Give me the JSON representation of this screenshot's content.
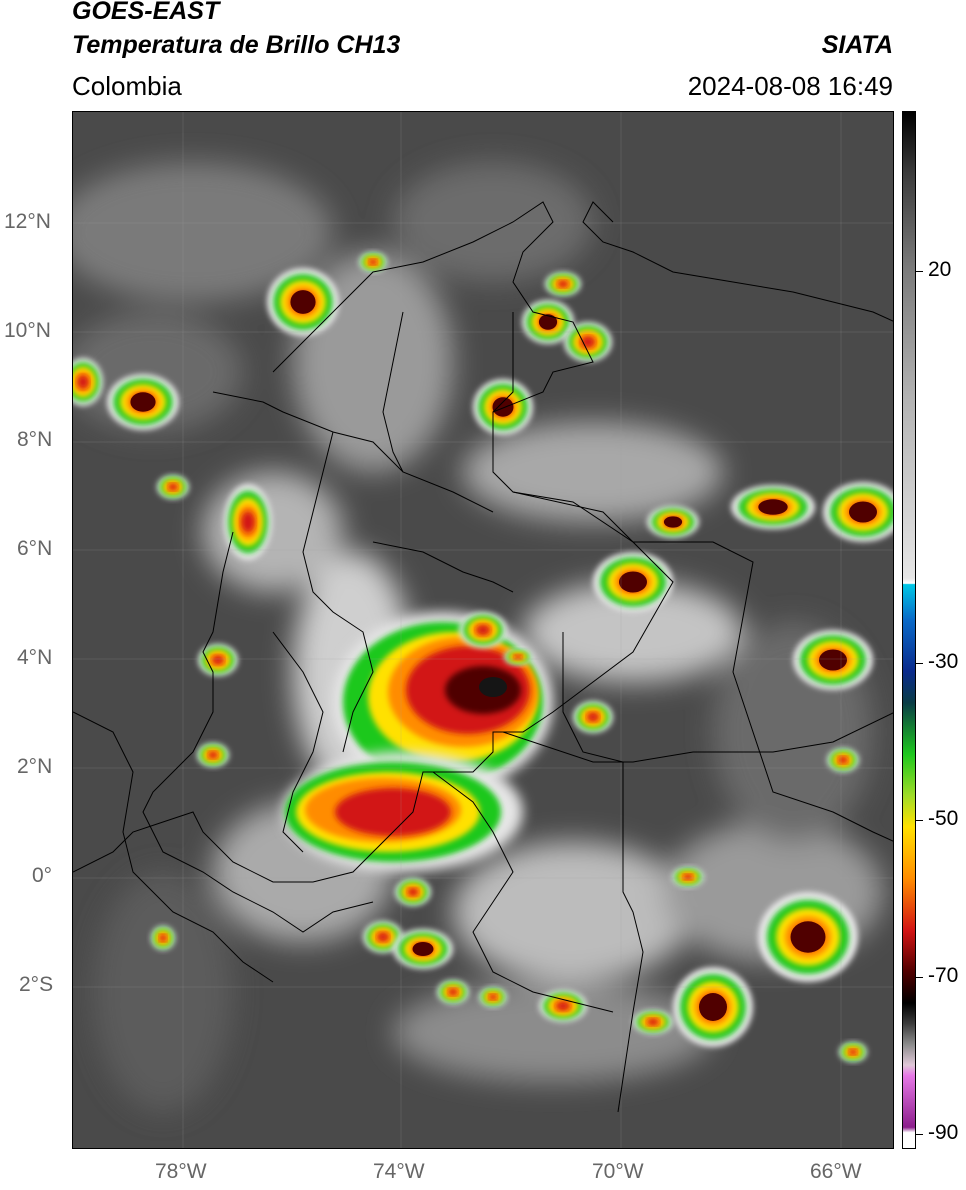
{
  "header": {
    "title_line1": "GOES-EAST",
    "title_line2": "Temperatura de Brillo CH13",
    "org": "SIATA",
    "region": "Colombia",
    "datetime": "2024-08-08 16:49"
  },
  "axes": {
    "lat_labels": [
      "12°N",
      "10°N",
      "8°N",
      "6°N",
      "4°N",
      "2°N",
      "0°",
      "2°S"
    ],
    "lon_labels": [
      "78°W",
      "74°W",
      "70°W",
      "66°W"
    ]
  },
  "colorbar": {
    "labels": [
      "20",
      "-30",
      "-50",
      "-70",
      "-90"
    ],
    "colors": {
      "warm_gray": "#4a4a4a",
      "cold_gray": "#e6e6e6",
      "cyan": "#00c8e6",
      "blue": "#0a2a8c",
      "green": "#1ec81e",
      "yellow": "#ffe100",
      "orange": "#ff8c00",
      "red": "#d21414",
      "dark_red": "#500000",
      "black": "#000000",
      "purple": "#8c1e8c",
      "pink": "#e678e6"
    }
  }
}
